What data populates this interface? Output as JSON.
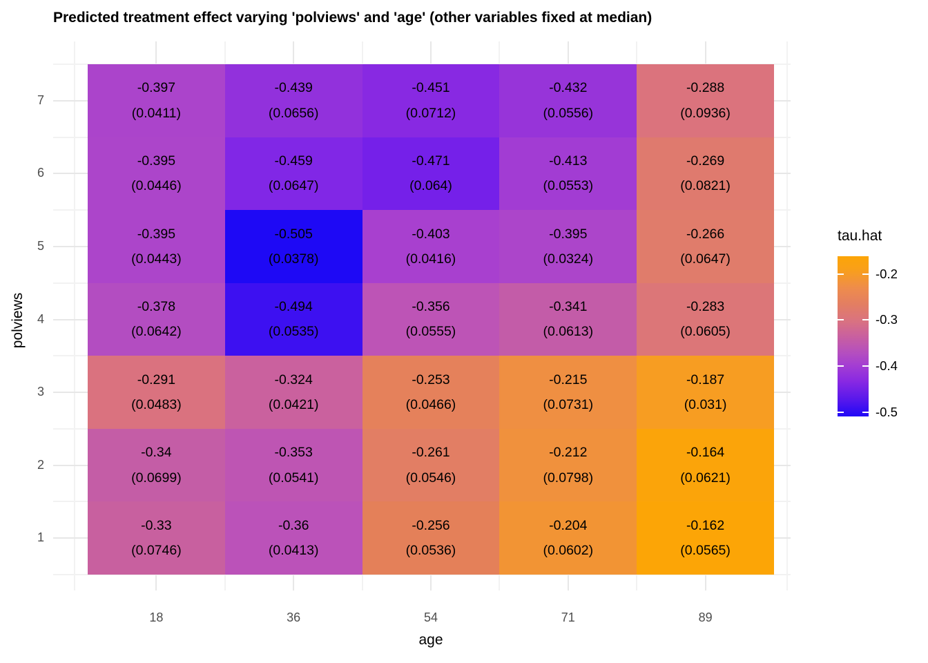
{
  "title": "Predicted treatment effect varying 'polviews' and 'age' (other variables fixed at median)",
  "chart_data": {
    "type": "heatmap",
    "xlabel": "age",
    "ylabel": "polviews",
    "x_categories": [
      "18",
      "36",
      "54",
      "71",
      "89"
    ],
    "y_categories_top_to_bottom": [
      "7",
      "6",
      "5",
      "4",
      "3",
      "2",
      "1"
    ],
    "grid": "on",
    "legend": {
      "title": "tau.hat",
      "position": "right",
      "ticks": [
        "-0.2",
        "-0.3",
        "-0.4",
        "-0.5"
      ],
      "tick_positions_pct": [
        11.2,
        39.7,
        68.5,
        97.4
      ],
      "gradient_top_to_bottom": [
        {
          "pos": 0,
          "color": "#FCA506"
        },
        {
          "pos": 8,
          "color": "#F9A019"
        },
        {
          "pos": 20,
          "color": "#EE8C4C"
        },
        {
          "pos": 30,
          "color": "#E37E62"
        },
        {
          "pos": 40,
          "color": "#DA737F"
        },
        {
          "pos": 50,
          "color": "#C9609F"
        },
        {
          "pos": 60,
          "color": "#B54FBE"
        },
        {
          "pos": 68,
          "color": "#A43ED2"
        },
        {
          "pos": 78,
          "color": "#8929E2"
        },
        {
          "pos": 90,
          "color": "#5517EC"
        },
        {
          "pos": 100,
          "color": "#2008F6"
        }
      ]
    },
    "rows": [
      {
        "polviews": "7",
        "cells": [
          {
            "value": "-0.397",
            "se": "(0.0411)",
            "color": "#AB44CB"
          },
          {
            "value": "-0.439",
            "se": "(0.0656)",
            "color": "#9231DC"
          },
          {
            "value": "-0.451",
            "se": "(0.0712)",
            "color": "#8829E2"
          },
          {
            "value": "-0.432",
            "se": "(0.0556)",
            "color": "#9734D9"
          },
          {
            "value": "-0.288",
            "se": "(0.0936)",
            "color": "#DB737D"
          }
        ]
      },
      {
        "polviews": "6",
        "cells": [
          {
            "value": "-0.395",
            "se": "(0.0446)",
            "color": "#AC45CA"
          },
          {
            "value": "-0.459",
            "se": "(0.0647)",
            "color": "#8127E6"
          },
          {
            "value": "-0.471",
            "se": "(0.064)",
            "color": "#7520E9"
          },
          {
            "value": "-0.413",
            "se": "(0.0553)",
            "color": "#A23CD3"
          },
          {
            "value": "-0.269",
            "se": "(0.0821)",
            "color": "#DF7A6E"
          }
        ]
      },
      {
        "polviews": "5",
        "cells": [
          {
            "value": "-0.395",
            "se": "(0.0443)",
            "color": "#AC45CA"
          },
          {
            "value": "-0.505",
            "se": "(0.0378)",
            "color": "#1E09F5"
          },
          {
            "value": "-0.403",
            "se": "(0.0416)",
            "color": "#A840CF"
          },
          {
            "value": "-0.395",
            "se": "(0.0324)",
            "color": "#AC45CA"
          },
          {
            "value": "-0.266",
            "se": "(0.0647)",
            "color": "#E07C6B"
          }
        ]
      },
      {
        "polviews": "4",
        "cells": [
          {
            "value": "-0.378",
            "se": "(0.0642)",
            "color": "#B34DC1"
          },
          {
            "value": "-0.494",
            "se": "(0.0535)",
            "color": "#3D10F1"
          },
          {
            "value": "-0.356",
            "se": "(0.0555)",
            "color": "#BD54B6"
          },
          {
            "value": "-0.341",
            "se": "(0.0613)",
            "color": "#C35CA8"
          },
          {
            "value": "-0.283",
            "se": "(0.0605)",
            "color": "#DC7678"
          }
        ]
      },
      {
        "polviews": "3",
        "cells": [
          {
            "value": "-0.291",
            "se": "(0.0483)",
            "color": "#DA727F"
          },
          {
            "value": "-0.324",
            "se": "(0.0421)",
            "color": "#CA619E"
          },
          {
            "value": "-0.253",
            "se": "(0.0466)",
            "color": "#E5815B"
          },
          {
            "value": "-0.215",
            "se": "(0.0731)",
            "color": "#EF8F42"
          },
          {
            "value": "-0.187",
            "se": "(0.031)",
            "color": "#F79D22"
          }
        ]
      },
      {
        "polviews": "2",
        "cells": [
          {
            "value": "-0.34",
            "se": "(0.0699)",
            "color": "#C45DA6"
          },
          {
            "value": "-0.353",
            "se": "(0.0541)",
            "color": "#BE55B3"
          },
          {
            "value": "-0.261",
            "se": "(0.0546)",
            "color": "#E27E64"
          },
          {
            "value": "-0.212",
            "se": "(0.0798)",
            "color": "#F0913D"
          },
          {
            "value": "-0.164",
            "se": "(0.0621)",
            "color": "#FBA40A"
          }
        ]
      },
      {
        "polviews": "1",
        "cells": [
          {
            "value": "-0.33",
            "se": "(0.0746)",
            "color": "#C8609F"
          },
          {
            "value": "-0.36",
            "se": "(0.0413)",
            "color": "#BB52B9"
          },
          {
            "value": "-0.256",
            "se": "(0.0536)",
            "color": "#E48059"
          },
          {
            "value": "-0.204",
            "se": "(0.0602)",
            "color": "#F29434"
          },
          {
            "value": "-0.162",
            "se": "(0.0565)",
            "color": "#FCA506"
          }
        ]
      }
    ]
  }
}
